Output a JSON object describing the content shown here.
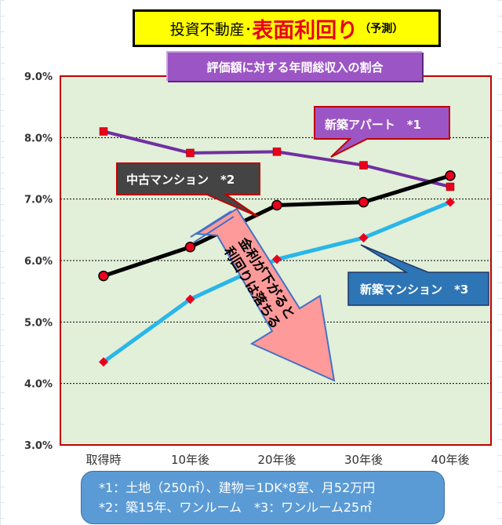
{
  "title": {
    "prefix": "投資不動産･",
    "main": "表面利回り",
    "suffix": "（予測）"
  },
  "subtitle": "評価額に対する年間総収入の割合",
  "chart_data": {
    "type": "line",
    "categories": [
      "取得時",
      "10年後",
      "20年後",
      "30年後",
      "40年後"
    ],
    "y_ticks": [
      "9.0%",
      "8.0%",
      "7.0%",
      "6.0%",
      "5.0%",
      "4.0%",
      "3.0%"
    ],
    "ylim": [
      3.0,
      9.0
    ],
    "series": [
      {
        "name": "新築アパート *1",
        "color": "#7030a0",
        "marker": "square",
        "marker_color": "#e8001c",
        "values": [
          8.1,
          7.75,
          7.77,
          7.55,
          7.2
        ]
      },
      {
        "name": "中古マンション *2",
        "color": "#000000",
        "marker": "circle",
        "marker_color": "#e8001c",
        "values": [
          5.75,
          6.22,
          6.9,
          6.95,
          7.38
        ]
      },
      {
        "name": "新築マンション *3",
        "color": "#29b6e8",
        "marker": "diamond",
        "marker_color": "#e8001c",
        "values": [
          4.35,
          5.37,
          6.02,
          6.37,
          6.95
        ]
      }
    ],
    "annotation": "金利が下がると\n利回りは落ちる",
    "grid": true
  },
  "callouts": {
    "apartment": "新築アパート　*1",
    "used_mansion": "中古マンション　*2",
    "new_mansion": "新築マンション　*3"
  },
  "colors": {
    "plot_bg": "#e2efd9",
    "plot_border": "#c00000",
    "callout_purple": "#9c55c4",
    "callout_dark": "#444444",
    "callout_blue": "#2e75b6",
    "arrow_fill": "#ff9a9a"
  },
  "notes": {
    "line1": "*1：土地（250㎡）、建物＝1DK*8室、月52万円",
    "line2": "*2：築15年、ワンルーム　*3：ワンルーム25㎡"
  }
}
